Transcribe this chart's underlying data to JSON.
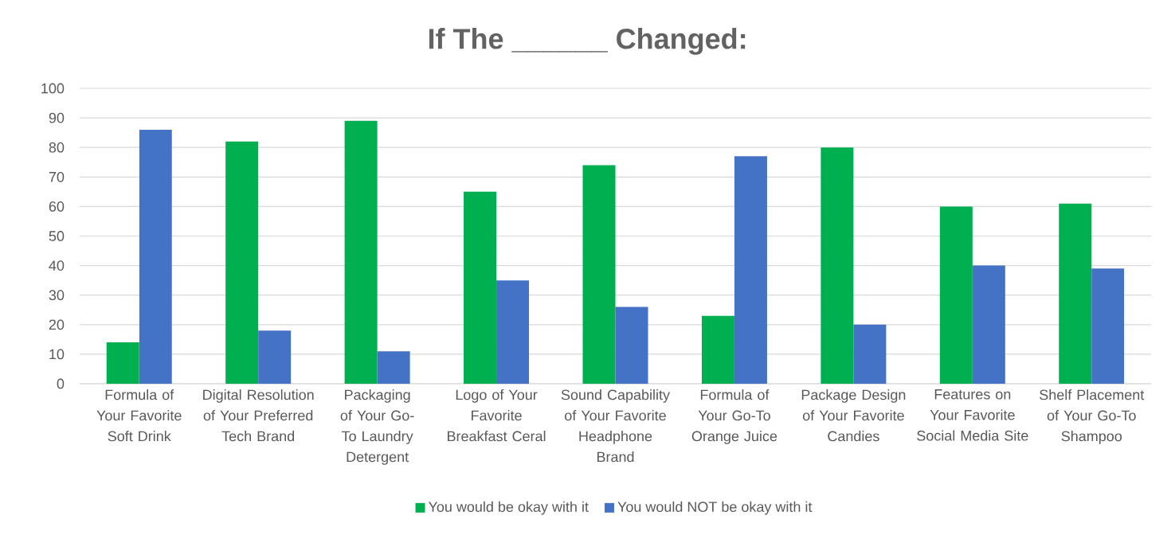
{
  "chart_data": {
    "type": "bar",
    "title": "If The ______ Changed:",
    "categories": [
      "Formula of Your Favorite Soft Drink",
      "Digital Resolution of Your Preferred Tech Brand",
      "Packaging of Your Go-To Laundry Detergent",
      "Logo of Your Favorite Breakfast Ceral",
      "Sound Capability of Your Favorite Headphone Brand",
      "Formula of Your Go-To Orange Juice",
      "Package Design of Your Favorite Candies",
      "Features on Your Favorite Social Media Site",
      "Shelf Placement of Your Go-To Shampoo"
    ],
    "series": [
      {
        "name": "You would be okay with it",
        "color": "#00b050",
        "values": [
          14,
          82,
          89,
          65,
          74,
          23,
          80,
          60,
          61
        ]
      },
      {
        "name": "You would NOT be okay with it",
        "color": "#4472c4",
        "values": [
          86,
          18,
          11,
          35,
          26,
          77,
          20,
          40,
          39
        ]
      }
    ],
    "ylim": [
      0,
      100
    ],
    "yticks": [
      0,
      10,
      20,
      30,
      40,
      50,
      60,
      70,
      80,
      90,
      100
    ],
    "grid": "y",
    "legend": "bottom"
  }
}
